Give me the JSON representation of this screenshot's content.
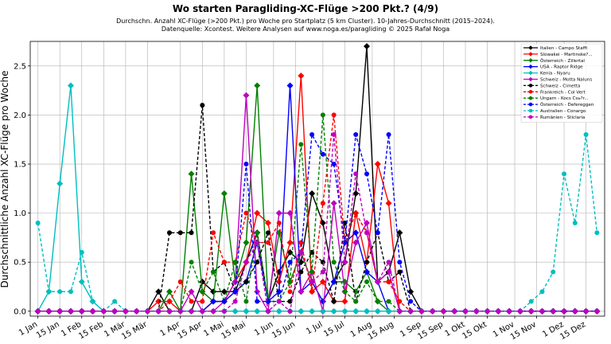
{
  "chart_data": {
    "type": "line",
    "title": "Wo starten Paragliding-XC-Flüge >200 Pkt.? (4/9)",
    "subtitle_lines": [
      "Durchschn. Anzahl XC-Flüge (>200 Pkt.) pro Woche pro Startplatz (5 km Cluster). 10-Jahres-Durchschnitt (2015–2024).",
      "Datenquelle: Xcontest. Weitere Analysen auf www.noga.es/paragliding © 2025 Rafał Noga"
    ],
    "ylabel": "Durchschnittliche Anzahl XC-Flüge pro Woche",
    "xlabel": "",
    "x_tick_labels": [
      "1 Jan",
      "15 Jan",
      "1 Feb",
      "15 Feb",
      "1 Mär",
      "15 Mär",
      "1 Apr",
      "15 Apr",
      "1 Mai",
      "15 Mai",
      "1 Jun",
      "15 Jun",
      "1 Jul",
      "15 Jul",
      "1 Aug",
      "15 Aug",
      "1 Sep",
      "15 Sep",
      "1 Okt",
      "15 Okt",
      "1 Nov",
      "15 Nov",
      "1 Dez",
      "15 Dez"
    ],
    "x_tick_weeks": [
      0,
      2,
      4,
      6,
      8,
      10,
      13,
      15,
      17,
      19,
      21.5,
      23.5,
      26,
      28,
      30.5,
      32.5,
      35,
      37,
      39,
      41,
      43.5,
      45.5,
      48,
      50
    ],
    "y_ticks": [
      0.0,
      0.5,
      1.0,
      1.5,
      2.0,
      2.5
    ],
    "y_tick_labels": [
      "0.0",
      "0.5",
      "1.0",
      "1.5",
      "2.0",
      "2.5"
    ],
    "xlim": [
      -0.7,
      51.7
    ],
    "ylim": [
      -0.05,
      2.75
    ],
    "grid": true,
    "legend_position": "top-right",
    "series": [
      {
        "name": "Italien - Campo Staffi",
        "color": "#000000",
        "dash": "solid",
        "marker": "diamond",
        "values": [
          0,
          0,
          0,
          0,
          0,
          0,
          0,
          0,
          0,
          0,
          0,
          0.2,
          0,
          0,
          0,
          0.3,
          0.2,
          0.2,
          0.2,
          0.5,
          0.8,
          0.1,
          0.4,
          0.6,
          0.5,
          1.2,
          0.9,
          0.3,
          0.5,
          1.2,
          2.7,
          0.3,
          0.4,
          0.8,
          0.2,
          0,
          0,
          0,
          0,
          0,
          0,
          0,
          0,
          0,
          0,
          0,
          0,
          0,
          0,
          0,
          0,
          0
        ]
      },
      {
        "name": "Slowakei - Martinske?...",
        "color": "#ff0000",
        "dash": "solid",
        "marker": "diamond",
        "values": [
          0,
          0,
          0,
          0,
          0,
          0,
          0,
          0,
          0,
          0,
          0,
          0.1,
          0.1,
          0,
          0,
          0,
          0.1,
          0.1,
          0.3,
          0.5,
          1.0,
          0.9,
          0.3,
          0.7,
          2.4,
          0.2,
          0.3,
          0.1,
          0.1,
          1.0,
          0.5,
          1.5,
          1.1,
          0,
          0,
          0,
          0,
          0,
          0,
          0,
          0,
          0,
          0,
          0,
          0,
          0,
          0,
          0,
          0,
          0,
          0,
          0
        ]
      },
      {
        "name": "Österreich - Zillertal",
        "color": "#008000",
        "dash": "solid",
        "marker": "diamond",
        "values": [
          0,
          0,
          0,
          0,
          0,
          0,
          0,
          0,
          0,
          0,
          0,
          0,
          0.2,
          0,
          1.4,
          0.2,
          0.1,
          1.2,
          0.3,
          0.7,
          2.3,
          0.1,
          0.8,
          0.3,
          0.6,
          0.3,
          0.1,
          0.3,
          0.3,
          0.2,
          0.4,
          0.1,
          0,
          0,
          0,
          0,
          0,
          0,
          0,
          0,
          0,
          0,
          0,
          0,
          0,
          0,
          0,
          0,
          0,
          0,
          0,
          0
        ]
      },
      {
        "name": "USA - Raptor Ridge",
        "color": "#0000ff",
        "dash": "solid",
        "marker": "diamond",
        "values": [
          0,
          0,
          0,
          0,
          0,
          0,
          0,
          0,
          0,
          0,
          0,
          0,
          0,
          0,
          0,
          0,
          0.1,
          0.1,
          0.2,
          0.3,
          0.7,
          0.1,
          0.2,
          2.3,
          0.2,
          0.3,
          0.1,
          0.3,
          0.7,
          0.8,
          0.4,
          0.3,
          0,
          0,
          0,
          0,
          0,
          0,
          0,
          0,
          0,
          0,
          0,
          0,
          0,
          0,
          0,
          0,
          0,
          0,
          0,
          0
        ]
      },
      {
        "name": "Kenia - Nyaru",
        "color": "#00bfbf",
        "dash": "solid",
        "marker": "diamond",
        "values": [
          0,
          0.2,
          1.3,
          2.3,
          0.3,
          0.1,
          0,
          0,
          0,
          0,
          0,
          0,
          0,
          0,
          0,
          0,
          0,
          0,
          0,
          0,
          0,
          0,
          0,
          0,
          0,
          0,
          0,
          0,
          0,
          0,
          0,
          0,
          0,
          0,
          0,
          0,
          0,
          0,
          0,
          0,
          0,
          0,
          0,
          0,
          0,
          0,
          0,
          0,
          0,
          0,
          0,
          0
        ]
      },
      {
        "name": "Schweiz - Motta Naluns",
        "color": "#bf00bf",
        "dash": "solid",
        "marker": "diamond",
        "values": [
          0,
          0,
          0,
          0,
          0,
          0,
          0,
          0,
          0,
          0,
          0,
          0,
          0,
          0,
          0.2,
          0,
          0,
          0.1,
          0.3,
          2.2,
          0.2,
          0,
          1.0,
          1.0,
          0.2,
          0.4,
          0,
          1.1,
          0.2,
          0.7,
          0.9,
          0.3,
          0.4,
          0,
          0,
          0,
          0,
          0,
          0,
          0,
          0,
          0,
          0,
          0,
          0,
          0,
          0,
          0,
          0,
          0,
          0,
          0
        ]
      },
      {
        "name": "Schweiz - Cimetta",
        "color": "#000000",
        "dash": "dashed",
        "marker": "circle",
        "values": [
          0,
          0,
          0,
          0,
          0,
          0,
          0,
          0,
          0,
          0,
          0,
          0,
          0.8,
          0.8,
          0.8,
          2.1,
          0.4,
          0.5,
          0.2,
          0.3,
          0.5,
          0.8,
          0.1,
          0.1,
          0.4,
          0.6,
          0.5,
          0.1,
          0.9,
          0.1,
          0.5,
          0.8,
          0.3,
          0.4,
          0,
          0,
          0,
          0,
          0,
          0,
          0,
          0,
          0,
          0,
          0,
          0,
          0,
          0,
          0,
          0,
          0,
          0
        ]
      },
      {
        "name": "Frankreich - Col Vert",
        "color": "#ff0000",
        "dash": "dashed",
        "marker": "circle",
        "values": [
          0,
          0,
          0,
          0,
          0,
          0,
          0,
          0,
          0,
          0,
          0,
          0,
          0.1,
          0.3,
          0.1,
          0.1,
          0.8,
          0.5,
          0.5,
          1.0,
          0.7,
          0.7,
          0.9,
          0.2,
          0.7,
          0.2,
          1.1,
          2.0,
          0.7,
          1.0,
          0.8,
          0.3,
          0.3,
          0.1,
          0,
          0,
          0,
          0,
          0,
          0,
          0,
          0,
          0,
          0,
          0,
          0,
          0,
          0,
          0,
          0,
          0,
          0
        ]
      },
      {
        "name": "Ungarn - Kocs Csь?r...",
        "color": "#008000",
        "dash": "dashed",
        "marker": "circle",
        "values": [
          0,
          0,
          0,
          0,
          0,
          0,
          0,
          0,
          0,
          0,
          0,
          0,
          0,
          0,
          0.5,
          0.2,
          0.4,
          0.1,
          0.5,
          0.1,
          0.8,
          0.1,
          0.1,
          0.3,
          1.7,
          0.4,
          2.0,
          0.5,
          0.2,
          0.1,
          0.3,
          0.1,
          0.1,
          0,
          0,
          0,
          0,
          0,
          0,
          0,
          0,
          0,
          0,
          0,
          0,
          0,
          0,
          0,
          0,
          0,
          0,
          0
        ]
      },
      {
        "name": "Österreich - Defereggen",
        "color": "#0000ff",
        "dash": "dashed",
        "marker": "circle",
        "values": [
          0,
          0,
          0,
          0,
          0,
          0,
          0,
          0,
          0,
          0,
          0,
          0,
          0,
          0,
          0,
          0,
          0.1,
          0.1,
          0.2,
          1.5,
          0.1,
          0.1,
          0.1,
          0.5,
          0.6,
          1.8,
          1.6,
          1.5,
          0.7,
          1.8,
          1.4,
          0.8,
          1.8,
          0.5,
          0.1,
          0,
          0,
          0,
          0,
          0,
          0,
          0,
          0,
          0,
          0,
          0,
          0,
          0,
          0,
          0,
          0,
          0
        ]
      },
      {
        "name": "Australien - Conargo",
        "color": "#00bfbf",
        "dash": "dashed",
        "marker": "circle",
        "values": [
          0.9,
          0.2,
          0.2,
          0.2,
          0.6,
          0.1,
          0,
          0.1,
          0,
          0,
          0,
          0,
          0,
          0,
          0,
          0,
          0,
          0,
          0,
          0,
          0,
          0,
          0,
          0,
          0,
          0,
          0,
          0,
          0,
          0,
          0,
          0,
          0,
          0,
          0,
          0,
          0,
          0,
          0,
          0,
          0,
          0,
          0,
          0,
          0,
          0.1,
          0.2,
          0.4,
          1.4,
          0.9,
          1.8,
          0.8
        ]
      },
      {
        "name": "Rumänien - Sticlaria",
        "color": "#bf00bf",
        "dash": "dashed",
        "marker": "circle",
        "values": [
          0,
          0,
          0,
          0,
          0,
          0,
          0,
          0,
          0,
          0,
          0,
          0,
          0,
          0,
          0,
          0,
          0,
          0,
          0.1,
          0.5,
          0.7,
          0,
          0.1,
          0,
          0.6,
          0.3,
          0.4,
          1.8,
          0.5,
          1.4,
          0.8,
          0.3,
          0.5,
          0,
          0,
          0,
          0,
          0,
          0,
          0,
          0,
          0,
          0,
          0,
          0,
          0,
          0,
          0,
          0,
          0,
          0,
          0
        ]
      }
    ]
  }
}
